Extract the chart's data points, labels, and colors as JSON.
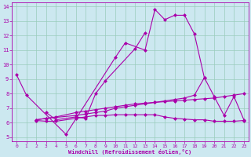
{
  "xlabel": "Windchill (Refroidissement éolien,°C)",
  "bg_color": "#cce8f0",
  "line_color": "#aa00aa",
  "grid_color": "#99ccbb",
  "xlim": [
    -0.5,
    23.5
  ],
  "ylim": [
    4.7,
    14.3
  ],
  "xticks": [
    0,
    1,
    2,
    3,
    4,
    5,
    6,
    7,
    8,
    9,
    10,
    11,
    12,
    13,
    14,
    15,
    16,
    17,
    18,
    19,
    20,
    21,
    22,
    23
  ],
  "yticks": [
    5,
    6,
    7,
    8,
    9,
    10,
    11,
    12,
    13,
    14
  ],
  "series0_x": [
    0,
    1,
    5,
    10,
    11,
    13,
    14,
    15,
    16,
    17,
    18,
    19
  ],
  "series0_y": [
    9.3,
    7.9,
    5.2,
    10.5,
    11.5,
    11.0,
    13.8,
    13.1,
    13.4,
    13.4,
    12.1,
    9.1
  ],
  "series1_x": [
    3,
    4,
    6,
    7,
    8,
    9,
    12,
    13
  ],
  "series1_y": [
    6.7,
    6.2,
    6.4,
    6.3,
    8.0,
    8.9,
    11.1,
    12.2
  ],
  "series2_x": [
    2,
    3,
    6,
    7,
    8,
    9,
    10,
    11,
    12,
    13,
    14,
    15,
    16,
    17,
    18,
    19,
    20,
    21,
    22,
    23
  ],
  "series2_y": [
    6.2,
    6.3,
    6.5,
    6.6,
    6.7,
    6.8,
    7.0,
    7.1,
    7.2,
    7.3,
    7.4,
    7.5,
    7.6,
    7.7,
    7.9,
    9.1,
    7.8,
    6.5,
    7.8,
    6.2
  ],
  "series3_x": [
    2,
    3,
    4,
    6,
    7,
    8,
    9,
    10,
    11,
    12,
    13,
    14,
    15,
    16,
    17,
    18,
    19,
    20,
    21,
    22,
    23
  ],
  "series3_y": [
    6.15,
    6.1,
    6.1,
    6.3,
    6.4,
    6.5,
    6.5,
    6.55,
    6.55,
    6.55,
    6.55,
    6.55,
    6.4,
    6.3,
    6.25,
    6.2,
    6.2,
    6.1,
    6.1,
    6.1,
    6.15
  ],
  "series4_x": [
    2,
    3,
    4,
    6,
    7,
    8,
    9,
    10,
    11,
    12,
    13,
    14,
    15,
    16,
    17,
    18,
    19,
    20,
    21,
    22,
    23
  ],
  "series4_y": [
    6.2,
    6.3,
    6.4,
    6.7,
    6.8,
    6.9,
    7.0,
    7.1,
    7.2,
    7.3,
    7.35,
    7.4,
    7.45,
    7.5,
    7.55,
    7.6,
    7.65,
    7.7,
    7.8,
    7.9,
    8.0
  ]
}
